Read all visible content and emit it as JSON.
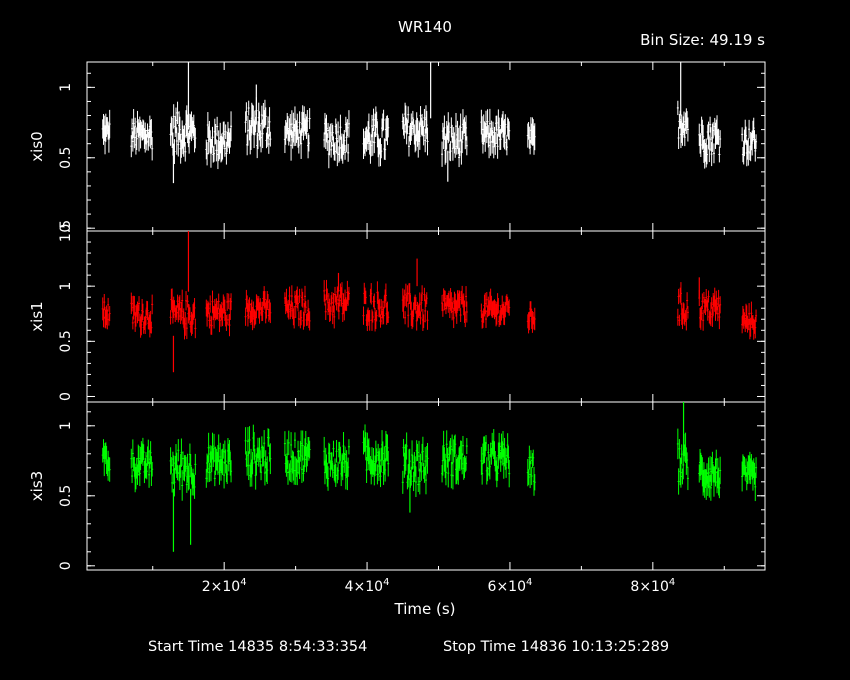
{
  "chart_data": {
    "type": "scatter",
    "title": "WR140",
    "bin_size_label": "Bin Size: 49.19 s",
    "xlabel": "Time (s)",
    "x_unit": "s",
    "x_tick_labels": [
      {
        "value": 20000,
        "mantissa": "2×10",
        "exp": "4"
      },
      {
        "value": 40000,
        "mantissa": "4×10",
        "exp": "4"
      },
      {
        "value": 60000,
        "mantissa": "6×10",
        "exp": "4"
      },
      {
        "value": 80000,
        "mantissa": "8×10",
        "exp": "4"
      }
    ],
    "xlim": [
      800,
      95700
    ],
    "grid": false,
    "footer": {
      "start_label": "Start Time 14835  8:54:33:354",
      "stop_label": "Stop Time 14836 10:13:25:289"
    },
    "panels": [
      {
        "name": "xis0",
        "ylabel": "xis0",
        "color": "#ffffff",
        "ylim": [
          -0.02,
          1.18
        ],
        "y_ticks": [
          0,
          0.5,
          1
        ],
        "y_tick_labels": [
          "0",
          "0.5",
          "1"
        ],
        "segments": [
          {
            "start": 3000,
            "end": 4000,
            "mean": 0.68,
            "amp": 0.08
          },
          {
            "start": 7000,
            "end": 10000,
            "mean": 0.66,
            "amp": 0.1
          },
          {
            "start": 12500,
            "end": 16000,
            "mean": 0.68,
            "amp": 0.14
          },
          {
            "start": 17500,
            "end": 21000,
            "mean": 0.62,
            "amp": 0.12
          },
          {
            "start": 23000,
            "end": 26500,
            "mean": 0.72,
            "amp": 0.14
          },
          {
            "start": 28500,
            "end": 32000,
            "mean": 0.68,
            "amp": 0.1
          },
          {
            "start": 34000,
            "end": 37500,
            "mean": 0.64,
            "amp": 0.12
          },
          {
            "start": 39500,
            "end": 43000,
            "mean": 0.64,
            "amp": 0.14
          },
          {
            "start": 45000,
            "end": 48500,
            "mean": 0.7,
            "amp": 0.12
          },
          {
            "start": 50500,
            "end": 54000,
            "mean": 0.62,
            "amp": 0.12
          },
          {
            "start": 56000,
            "end": 60000,
            "mean": 0.66,
            "amp": 0.1
          },
          {
            "start": 62500,
            "end": 63500,
            "mean": 0.62,
            "amp": 0.08
          },
          {
            "start": 83500,
            "end": 85000,
            "mean": 0.76,
            "amp": 0.12
          },
          {
            "start": 86500,
            "end": 89500,
            "mean": 0.64,
            "amp": 0.12
          },
          {
            "start": 92500,
            "end": 94500,
            "mean": 0.62,
            "amp": 0.1
          }
        ],
        "spikes": [
          {
            "x": 15000,
            "low": 0.7,
            "high": 1.18
          },
          {
            "x": 24500,
            "low": 0.8,
            "high": 1.02
          },
          {
            "x": 48900,
            "low": 0.78,
            "high": 1.18
          },
          {
            "x": 83900,
            "low": 0.8,
            "high": 1.18
          },
          {
            "x": 12900,
            "low": 0.32,
            "high": 0.6
          },
          {
            "x": 51300,
            "low": 0.33,
            "high": 0.55
          }
        ]
      },
      {
        "name": "xis1",
        "ylabel": "xis1",
        "color": "#ff0000",
        "ylim": [
          -0.05,
          1.5
        ],
        "y_ticks": [
          0,
          0.5,
          1,
          1.5
        ],
        "y_tick_labels": [
          "0",
          "0.5",
          "1",
          "1.5"
        ],
        "segments": [
          {
            "start": 3000,
            "end": 4000,
            "mean": 0.76,
            "amp": 0.1
          },
          {
            "start": 7000,
            "end": 10000,
            "mean": 0.74,
            "amp": 0.12
          },
          {
            "start": 12500,
            "end": 16000,
            "mean": 0.74,
            "amp": 0.14
          },
          {
            "start": 17500,
            "end": 21000,
            "mean": 0.76,
            "amp": 0.12
          },
          {
            "start": 23000,
            "end": 26500,
            "mean": 0.8,
            "amp": 0.1
          },
          {
            "start": 28500,
            "end": 32000,
            "mean": 0.8,
            "amp": 0.12
          },
          {
            "start": 34000,
            "end": 37500,
            "mean": 0.84,
            "amp": 0.14
          },
          {
            "start": 39500,
            "end": 43000,
            "mean": 0.82,
            "amp": 0.14
          },
          {
            "start": 45000,
            "end": 48500,
            "mean": 0.8,
            "amp": 0.14
          },
          {
            "start": 50500,
            "end": 54000,
            "mean": 0.8,
            "amp": 0.12
          },
          {
            "start": 56000,
            "end": 60000,
            "mean": 0.78,
            "amp": 0.1
          },
          {
            "start": 62500,
            "end": 63500,
            "mean": 0.72,
            "amp": 0.08
          },
          {
            "start": 83500,
            "end": 85000,
            "mean": 0.8,
            "amp": 0.14
          },
          {
            "start": 86500,
            "end": 89500,
            "mean": 0.8,
            "amp": 0.12
          },
          {
            "start": 92500,
            "end": 94500,
            "mean": 0.68,
            "amp": 0.08
          }
        ],
        "spikes": [
          {
            "x": 15000,
            "low": 0.95,
            "high": 1.5
          },
          {
            "x": 12900,
            "low": 0.22,
            "high": 0.55
          },
          {
            "x": 47000,
            "low": 1.0,
            "high": 1.25
          },
          {
            "x": 36000,
            "low": 0.95,
            "high": 1.12
          },
          {
            "x": 86500,
            "low": 0.9,
            "high": 1.08
          }
        ]
      },
      {
        "name": "xis3",
        "ylabel": "xis3",
        "color": "#00ff00",
        "ylim": [
          -0.03,
          1.17
        ],
        "y_ticks": [
          0,
          0.5,
          1
        ],
        "y_tick_labels": [
          "0",
          "0.5",
          "1"
        ],
        "segments": [
          {
            "start": 3000,
            "end": 4000,
            "mean": 0.76,
            "amp": 0.1
          },
          {
            "start": 7000,
            "end": 10000,
            "mean": 0.72,
            "amp": 0.1
          },
          {
            "start": 12500,
            "end": 16000,
            "mean": 0.7,
            "amp": 0.14
          },
          {
            "start": 17500,
            "end": 21000,
            "mean": 0.74,
            "amp": 0.12
          },
          {
            "start": 23000,
            "end": 26500,
            "mean": 0.78,
            "amp": 0.14
          },
          {
            "start": 28500,
            "end": 32000,
            "mean": 0.78,
            "amp": 0.12
          },
          {
            "start": 34000,
            "end": 37500,
            "mean": 0.74,
            "amp": 0.12
          },
          {
            "start": 39500,
            "end": 43000,
            "mean": 0.78,
            "amp": 0.14
          },
          {
            "start": 45000,
            "end": 48500,
            "mean": 0.72,
            "amp": 0.14
          },
          {
            "start": 50500,
            "end": 54000,
            "mean": 0.76,
            "amp": 0.12
          },
          {
            "start": 56000,
            "end": 60000,
            "mean": 0.76,
            "amp": 0.12
          },
          {
            "start": 62500,
            "end": 63500,
            "mean": 0.68,
            "amp": 0.1
          },
          {
            "start": 83500,
            "end": 85000,
            "mean": 0.74,
            "amp": 0.14
          },
          {
            "start": 86500,
            "end": 89500,
            "mean": 0.66,
            "amp": 0.12
          },
          {
            "start": 92500,
            "end": 94500,
            "mean": 0.64,
            "amp": 0.08
          }
        ],
        "spikes": [
          {
            "x": 12900,
            "low": 0.1,
            "high": 0.55
          },
          {
            "x": 15300,
            "low": 0.15,
            "high": 0.55
          },
          {
            "x": 84300,
            "low": 0.8,
            "high": 1.17
          },
          {
            "x": 46000,
            "low": 0.38,
            "high": 0.62
          }
        ]
      }
    ]
  }
}
